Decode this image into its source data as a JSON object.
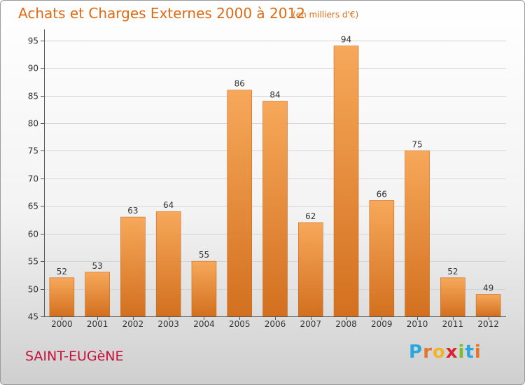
{
  "chart_data": {
    "type": "bar",
    "title": "Achats et Charges Externes 2000 à 2012",
    "unit_note": "(en milliers d'€)",
    "categories": [
      "2000",
      "2001",
      "2002",
      "2003",
      "2004",
      "2005",
      "2006",
      "2007",
      "2008",
      "2009",
      "2010",
      "2011",
      "2012"
    ],
    "values": [
      52,
      53,
      63,
      64,
      55,
      86,
      84,
      62,
      94,
      66,
      75,
      52,
      49
    ],
    "yticks": [
      45,
      50,
      55,
      60,
      65,
      70,
      75,
      80,
      85,
      90,
      95
    ],
    "ylim": [
      45,
      97
    ],
    "xlabel": "",
    "ylabel": "",
    "grid": "horizontal"
  },
  "footer": {
    "town": "SAINT-EUGèNE",
    "brand_letters": [
      "P",
      "r",
      "o",
      "x",
      "i",
      "t",
      "i"
    ],
    "brand_colors": [
      "#2aa7de",
      "#e8732a",
      "#f4b42a",
      "#d8262e",
      "#7dbb2e",
      "#2aa7de",
      "#e8732a"
    ]
  },
  "colors": {
    "bar_top": "#f7a85a",
    "bar_bottom": "#d2701f",
    "title": "#e06a14",
    "town": "#c8103c"
  }
}
